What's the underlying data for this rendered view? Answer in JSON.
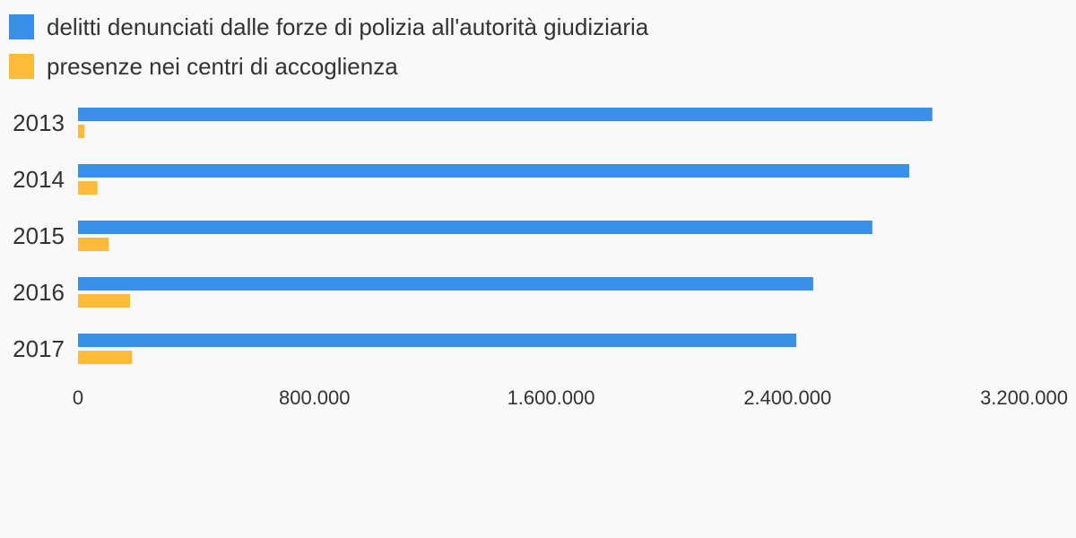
{
  "chart_data": {
    "type": "bar",
    "orientation": "horizontal",
    "categories": [
      "2013",
      "2014",
      "2015",
      "2016",
      "2017"
    ],
    "series": [
      {
        "name": "delitti denunciati dalle forze di polizia all'autorità giudiziaria",
        "color": "#3a8fe8",
        "values": [
          2890000,
          2812000,
          2687000,
          2487000,
          2430000
        ]
      },
      {
        "name": "presenze nei centri di accoglienza",
        "color": "#ffbb38",
        "values": [
          22000,
          66000,
          104000,
          176000,
          183000
        ]
      }
    ],
    "xlim": [
      0,
      3200000
    ],
    "x_ticks": [
      0,
      800000,
      1600000,
      2400000,
      3200000
    ],
    "x_tick_labels": [
      "0",
      "800.000",
      "1.600.000",
      "2.400.000",
      "3.200.000"
    ],
    "legend_position": "top-left",
    "grid": false
  }
}
